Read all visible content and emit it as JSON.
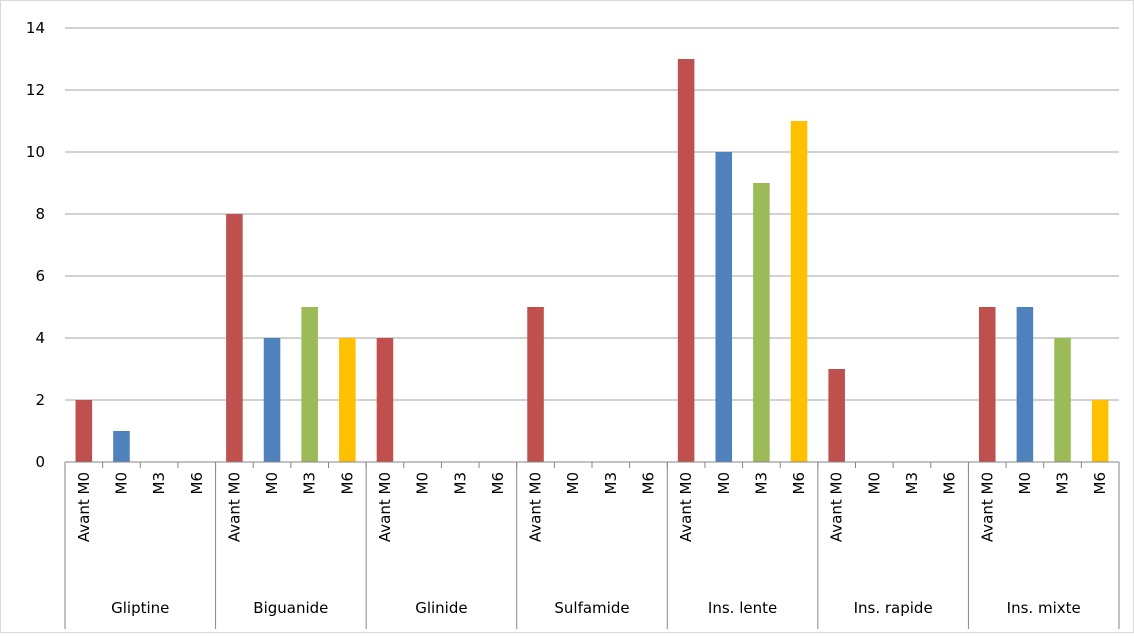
{
  "chart_data": {
    "type": "bar",
    "title": "",
    "xlabel": "",
    "ylabel": "",
    "ylim": [
      0,
      14
    ],
    "yticks": [
      "0",
      "2",
      "4",
      "6",
      "8",
      "10",
      "12",
      "14"
    ],
    "grid": true,
    "legend": "none",
    "groups": [
      "Gliptine",
      "Biguanide",
      "Glinide",
      "Sulfamide",
      "Ins. lente",
      "Ins. rapide",
      "Ins. mixte"
    ],
    "categories": [
      "Avant M0",
      "M0",
      "M3",
      "M6"
    ],
    "colors": {
      "Avant M0": "#c0504d",
      "M0": "#4f81bd",
      "M3": "#9bbb59",
      "M6": "#ffc000"
    },
    "values": [
      [
        2,
        1,
        0,
        0
      ],
      [
        8,
        4,
        5,
        4
      ],
      [
        4,
        0,
        0,
        0
      ],
      [
        5,
        0,
        0,
        0
      ],
      [
        13,
        10,
        9,
        11
      ],
      [
        3,
        0,
        0,
        0
      ],
      [
        5,
        5,
        4,
        2
      ]
    ]
  }
}
